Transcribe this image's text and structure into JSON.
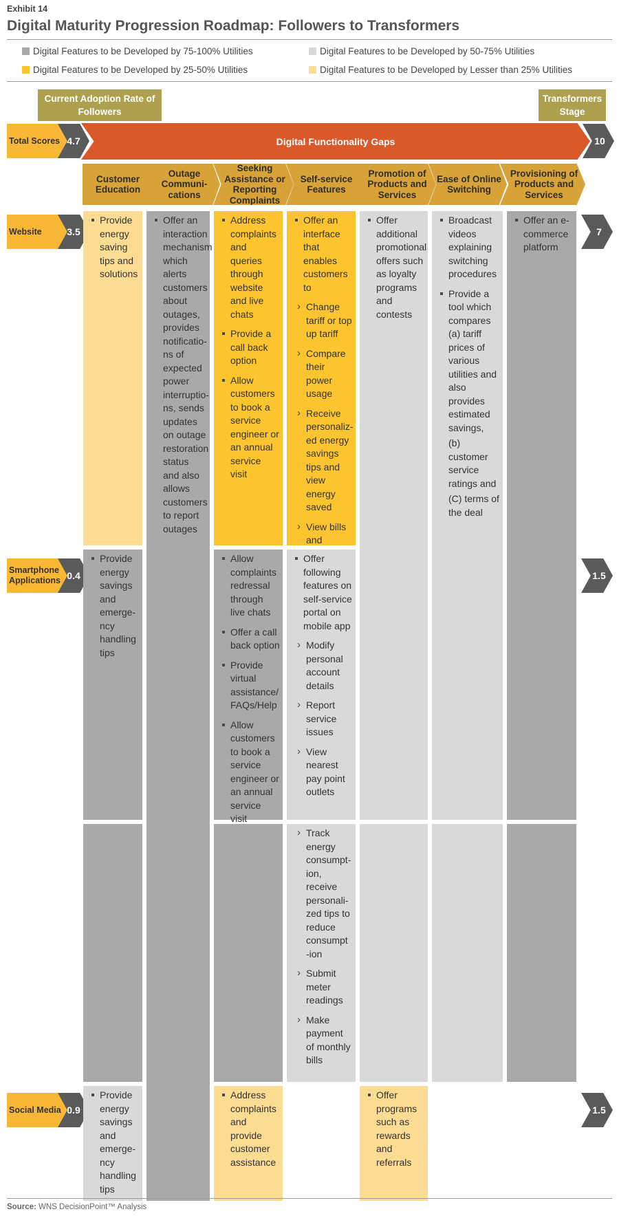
{
  "header": {
    "exhibit": "Exhibit 14",
    "title": "Digital Maturity Progression Roadmap: Followers to Transformers"
  },
  "legend": [
    {
      "label": "Digital Features to be Developed by 75-100% Utilities",
      "color": "#a9a9a9"
    },
    {
      "label": "Digital Features to be Developed by 50-75% Utilities",
      "color": "#d9d9d9"
    },
    {
      "label": "Digital Features to be Developed by 25-50% Utilities",
      "color": "#fcc52f"
    },
    {
      "label": "Digital Features to be Developed by Lesser than 25% Utilities",
      "color": "#fcdb93"
    }
  ],
  "stages": {
    "current": "Current Adoption Rate of Followers",
    "target": "Transformers Stage"
  },
  "total_scores": {
    "label": "Total Scores",
    "current": "4.7",
    "target": "10"
  },
  "gap_label": "Digital Functionality Gaps",
  "columns": [
    "Customer Education",
    "Outage Communi-cations",
    "Seeking Assistance or Reporting Complaints",
    "Self-service Features",
    "Promotion of Products and Services",
    "Ease of Online Switching",
    "Provisioning of Products and Services"
  ],
  "channels": [
    {
      "label": "Website",
      "current": "3.5",
      "target": "7"
    },
    {
      "label": "Smartphone Applications",
      "current": "0.4",
      "target": "1.5"
    },
    {
      "label": "Social Media",
      "current": "0.9",
      "target": "1.5"
    }
  ],
  "cells": {
    "web_edu": [
      "Provide energy saving tips and solutions"
    ],
    "outage": [
      "Offer an interaction mechanism which alerts customers about outages, provides notificatio-ns of expected power interruptio-ns, sends updates on outage restoration status and also allows customers to report outages"
    ],
    "web_assist": [
      "Address complaints and queries through website and live chats",
      "Provide a call back option",
      "Allow customers to book a service engineer or an annual service visit"
    ],
    "web_self": {
      "intro": "Offer an interface that enables customers to",
      "subs": [
        "Change tariff or top up tariff",
        "Compare their power usage",
        "Receive personaliz-ed energy savings tips and view energy saved",
        "View bills and payment details"
      ]
    },
    "promo": [
      "Offer additional promotional offers such as loyalty programs and contests"
    ],
    "switching": [
      "Broadcast videos explaining switching procedures",
      "Provide a tool which compares",
      "(a) tariff prices of various utilities and also provides estimated savings,",
      "(b) customer service ratings and",
      "(C) terms of the deal"
    ],
    "provision": [
      "Offer an e-commerce platform"
    ],
    "app_edu": [
      "Provide energy savings and emerge-ncy handling tips"
    ],
    "app_assist": [
      "Allow complaints redressal through live chats",
      "Offer a call back option",
      "Provide virtual assistance/ FAQs/Help",
      "Allow customers to book a service engineer or an annual service visit"
    ],
    "app_self": {
      "intro": "Offer following features on self-service portal on mobile app",
      "subs": [
        "Modify personal account details",
        "Report service issues",
        "View nearest pay point outlets"
      ]
    },
    "app_self2": [
      "Track energy consumpt-ion, receive personali-zed tips to reduce consumpt -ion",
      "Submit meter readings",
      "Make payment of monthly bills"
    ],
    "soc_edu": [
      "Provide energy savings and emerge-ncy handling tips"
    ],
    "soc_assist": [
      "Address complaints and provide customer assistance"
    ],
    "soc_promo": [
      "Offer programs such as rewards and referrals"
    ]
  },
  "source": {
    "prefix": "Source:",
    "text": "WNS DecisionPoint™ Analysis"
  }
}
